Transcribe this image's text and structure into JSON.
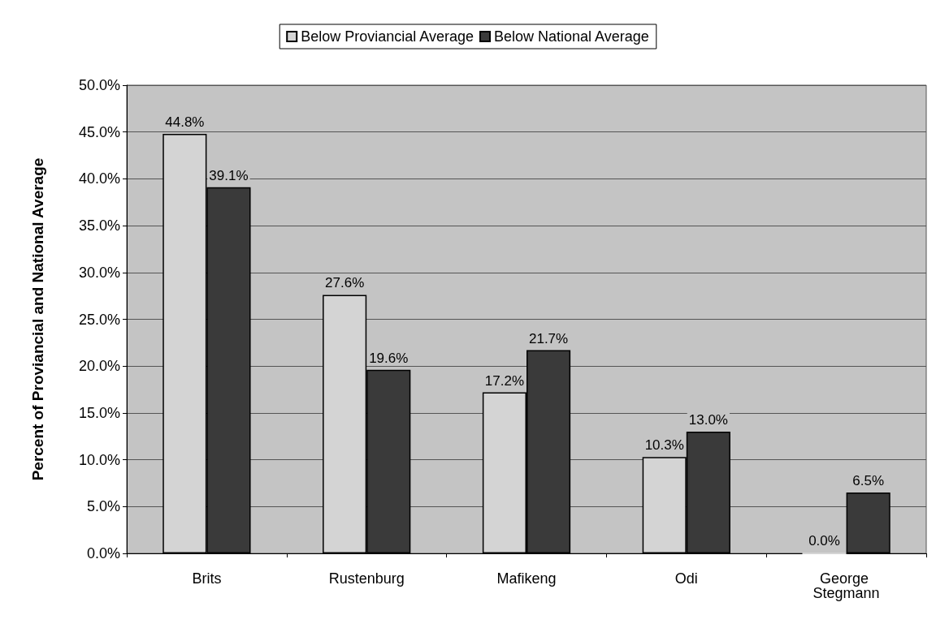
{
  "chart_data": {
    "type": "bar",
    "ylabel": "Percent of Proviancial and National Average",
    "categories": [
      "Brits",
      "Rustenburg",
      "Mafikeng",
      "Odi",
      "George Stegmann"
    ],
    "series": [
      {
        "name": "Below Proviancial Average",
        "color": "#d4d4d4",
        "values": [
          44.8,
          27.6,
          17.2,
          10.3,
          0.0
        ],
        "value_labels": [
          "44.8%",
          "27.6%",
          "17.2%",
          "10.3%",
          "0.0%"
        ]
      },
      {
        "name": "Below National Average",
        "color": "#3a3a3a",
        "values": [
          39.1,
          19.6,
          21.7,
          13.0,
          6.5
        ],
        "value_labels": [
          "39.1%",
          "19.6%",
          "21.7%",
          "13.0%",
          "6.5%"
        ]
      }
    ],
    "ylim": [
      0,
      50
    ],
    "yticks": [
      {
        "value": 0,
        "label": "0.0%"
      },
      {
        "value": 5,
        "label": "5.0%"
      },
      {
        "value": 10,
        "label": "10.0%"
      },
      {
        "value": 15,
        "label": "15.0%"
      },
      {
        "value": 20,
        "label": "20.0%"
      },
      {
        "value": 25,
        "label": "25.0%"
      },
      {
        "value": 30,
        "label": "30.0%"
      },
      {
        "value": 35,
        "label": "35.0%"
      },
      {
        "value": 40,
        "label": "40.0%"
      },
      {
        "value": 45,
        "label": "45.0%"
      },
      {
        "value": 50,
        "label": "50.0%"
      }
    ],
    "grid": "y",
    "legend": "top"
  }
}
